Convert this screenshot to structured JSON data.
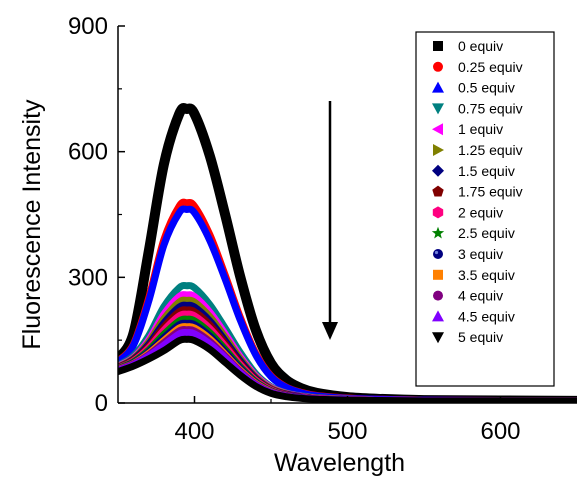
{
  "chart_data": {
    "type": "line",
    "title": "",
    "xlabel": "Wavelength",
    "ylabel": "Fluorescence Intensity",
    "xlim": [
      350,
      650
    ],
    "ylim": [
      0,
      900
    ],
    "xticks": [
      400,
      500,
      600
    ],
    "yticks": [
      0,
      300,
      600,
      900
    ],
    "grid": false,
    "legend_position": "top-right",
    "annotation": "downward arrow indicating decreasing intensity with increasing equivalents",
    "x": [
      350,
      360,
      370,
      380,
      390,
      395,
      400,
      410,
      420,
      430,
      440,
      450,
      460,
      470,
      480,
      500,
      520,
      550,
      600,
      650
    ],
    "series": [
      {
        "name": "0 equiv",
        "marker": "square",
        "color": "#000000",
        "peak": 702,
        "values": [
          105,
          165,
          360,
          570,
          690,
          702,
          690,
          590,
          450,
          300,
          175,
          95,
          55,
          35,
          24,
          14,
          10,
          7,
          6,
          5
        ]
      },
      {
        "name": "0.25 equiv",
        "marker": "circle",
        "color": "#ff0000",
        "peak": 478,
        "values": [
          100,
          140,
          250,
          390,
          470,
          478,
          470,
          402,
          306,
          204,
          119,
          65,
          38,
          25,
          18,
          12,
          9,
          7,
          6,
          5
        ]
      },
      {
        "name": "0.5 equiv",
        "marker": "triangle-up",
        "color": "#0000ff",
        "peak": 462,
        "values": [
          98,
          137,
          242,
          377,
          454,
          462,
          454,
          388,
          296,
          197,
          115,
          63,
          37,
          24,
          17,
          11,
          9,
          7,
          6,
          5
        ]
      },
      {
        "name": "0.75 equiv",
        "marker": "triangle-down",
        "color": "#008080",
        "peak": 280,
        "values": [
          90,
          112,
          160,
          230,
          275,
          280,
          275,
          235,
          179,
          120,
          70,
          39,
          24,
          17,
          13,
          9,
          7,
          6,
          5,
          5
        ]
      },
      {
        "name": "1 equiv",
        "marker": "triangle-left",
        "color": "#ff00ff",
        "peak": 258,
        "values": [
          88,
          108,
          150,
          212,
          254,
          258,
          254,
          217,
          165,
          110,
          65,
          37,
          23,
          16,
          12,
          9,
          7,
          6,
          5,
          5
        ]
      },
      {
        "name": "1.25 equiv",
        "marker": "triangle-right",
        "color": "#808000",
        "peak": 245,
        "values": [
          86,
          106,
          145,
          201,
          241,
          245,
          241,
          206,
          157,
          105,
          62,
          35,
          22,
          15,
          12,
          9,
          7,
          6,
          5,
          5
        ]
      },
      {
        "name": "1.5 equiv",
        "marker": "diamond",
        "color": "#000080",
        "peak": 233,
        "values": [
          85,
          104,
          140,
          191,
          229,
          233,
          229,
          196,
          149,
          100,
          59,
          33,
          21,
          15,
          11,
          8,
          7,
          6,
          5,
          5
        ]
      },
      {
        "name": "1.75 equiv",
        "marker": "pentagon",
        "color": "#800000",
        "peak": 222,
        "values": [
          84,
          102,
          135,
          182,
          218,
          222,
          218,
          187,
          142,
          95,
          56,
          32,
          20,
          14,
          11,
          8,
          7,
          6,
          5,
          5
        ]
      },
      {
        "name": "2 equiv",
        "marker": "hexagon",
        "color": "#ff0080",
        "peak": 212,
        "values": [
          83,
          100,
          131,
          174,
          208,
          212,
          208,
          178,
          136,
          91,
          54,
          31,
          19,
          14,
          11,
          8,
          7,
          6,
          5,
          5
        ]
      },
      {
        "name": "2.5 equiv",
        "marker": "star",
        "color": "#008000",
        "peak": 200,
        "values": [
          82,
          98,
          126,
          164,
          196,
          200,
          196,
          168,
          128,
          86,
          51,
          29,
          18,
          13,
          10,
          8,
          7,
          6,
          5,
          5
        ]
      },
      {
        "name": "3 equiv",
        "marker": "sphere",
        "color": "#000080",
        "peak": 190,
        "values": [
          81,
          96,
          122,
          156,
          187,
          190,
          187,
          160,
          122,
          82,
          49,
          28,
          18,
          13,
          10,
          8,
          7,
          6,
          5,
          5
        ]
      },
      {
        "name": "3.5 equiv",
        "marker": "square",
        "color": "#ff8000",
        "peak": 182,
        "values": [
          80,
          94,
          118,
          149,
          179,
          182,
          179,
          153,
          116,
          78,
          47,
          27,
          17,
          12,
          10,
          8,
          7,
          6,
          5,
          5
        ]
      },
      {
        "name": "4 equiv",
        "marker": "circle",
        "color": "#800080",
        "peak": 175,
        "values": [
          79,
          93,
          115,
          144,
          172,
          175,
          172,
          147,
          112,
          75,
          45,
          26,
          17,
          12,
          10,
          8,
          7,
          6,
          5,
          5
        ]
      },
      {
        "name": "4.5 equiv",
        "marker": "triangle-up",
        "color": "#8000ff",
        "peak": 168,
        "values": [
          78,
          91,
          112,
          138,
          165,
          168,
          165,
          141,
          108,
          72,
          43,
          25,
          16,
          12,
          10,
          8,
          7,
          6,
          5,
          5
        ]
      },
      {
        "name": "5 equiv",
        "marker": "triangle-down",
        "color": "#000000",
        "peak": 152,
        "values": [
          75,
          88,
          105,
          125,
          149,
          152,
          149,
          128,
          97,
          66,
          40,
          23,
          15,
          11,
          9,
          7,
          6,
          5,
          5,
          5
        ]
      }
    ]
  }
}
